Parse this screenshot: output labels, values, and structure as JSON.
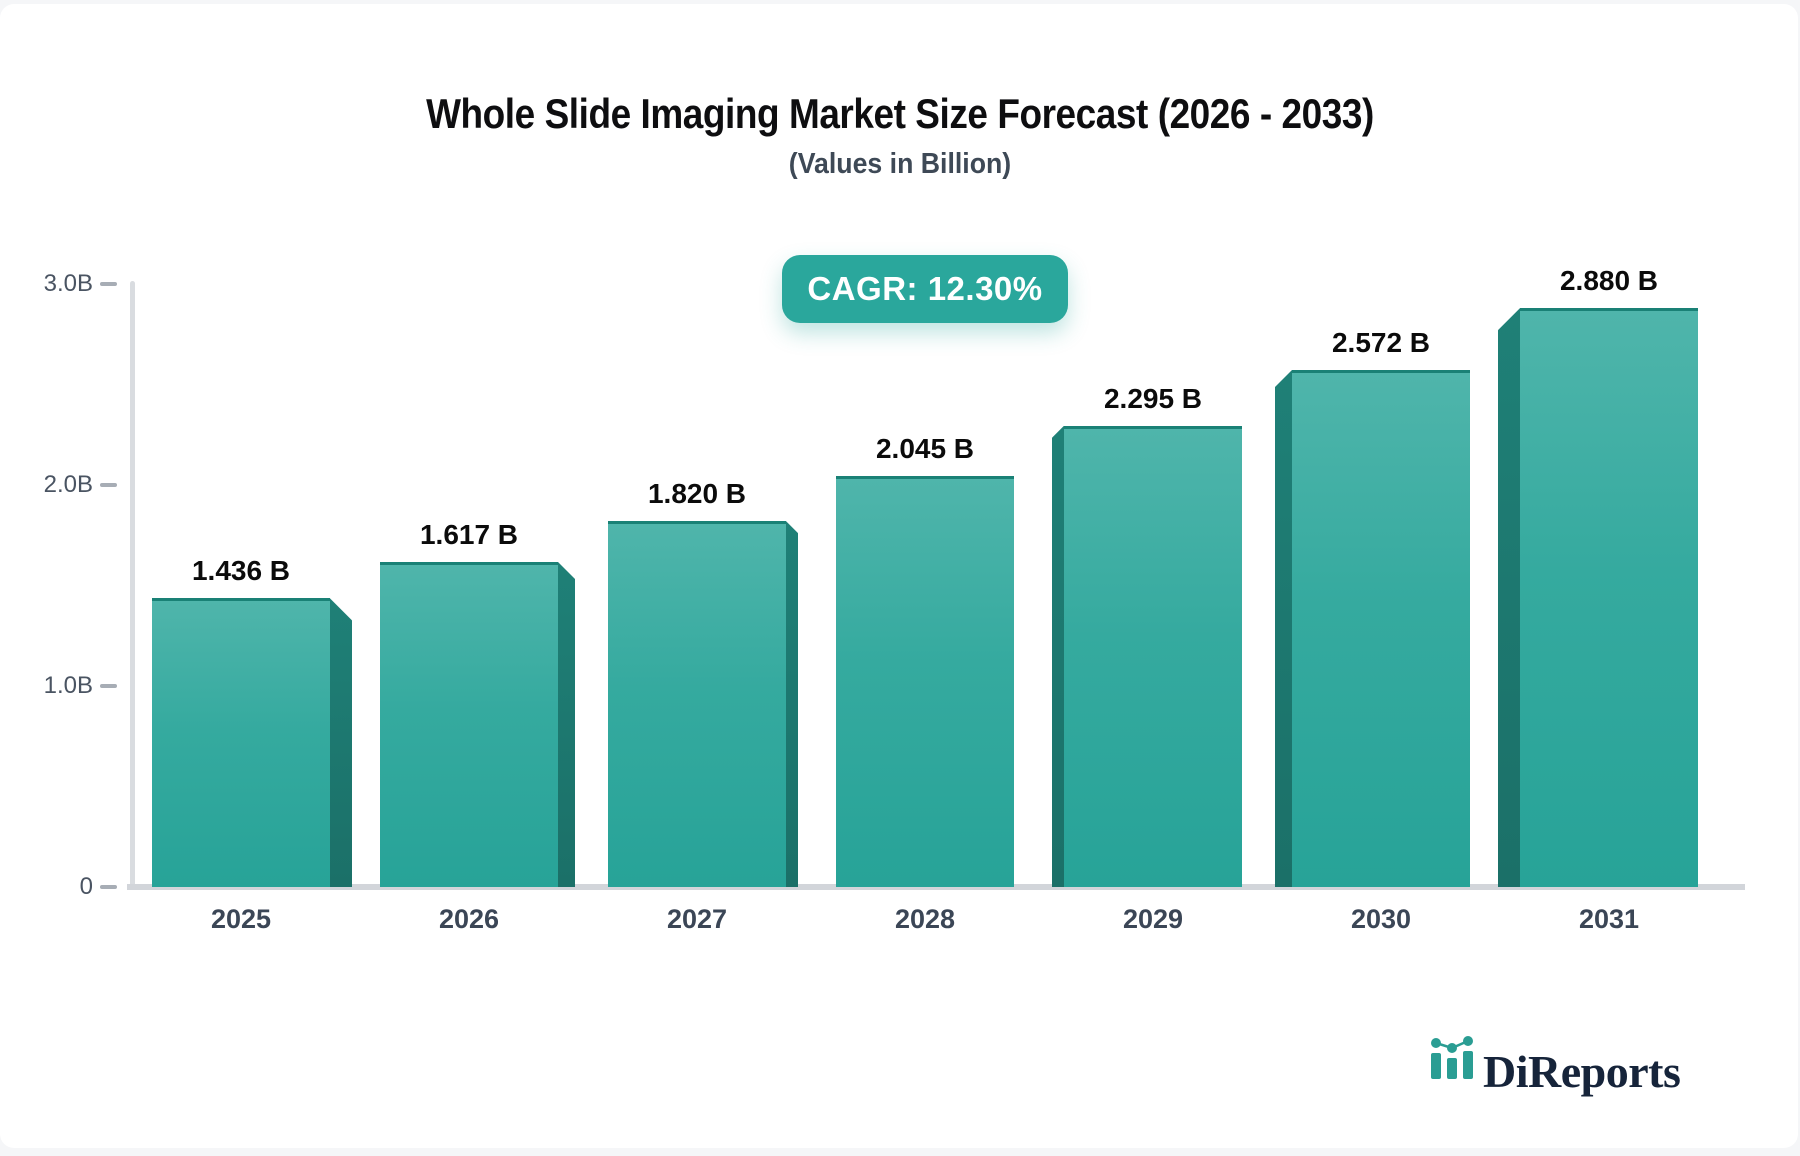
{
  "page": {
    "title": "Whole Slide Imaging Market Size Forecast (2026 - 2033)",
    "subtitle": "(Values in Billion)"
  },
  "badge": {
    "label": "CAGR: 12.30%",
    "bg_color": "#2AA79C",
    "text_color": "#FFFFFF"
  },
  "chart_data": {
    "type": "bar",
    "title": "Whole Slide Imaging Market Size Forecast (2026 - 2033)",
    "subtitle": "(Values in Billion)",
    "unit": "Billion",
    "categories": [
      "2025",
      "2026",
      "2027",
      "2028",
      "2029",
      "2030",
      "2031"
    ],
    "values": [
      1.436,
      1.617,
      1.82,
      2.045,
      2.295,
      2.572,
      2.88
    ],
    "value_labels": [
      "1.436 B",
      "1.617 B",
      "1.820 B",
      "2.045 B",
      "2.295 B",
      "2.572 B",
      "2.880 B"
    ],
    "ylim": [
      0,
      3.0
    ],
    "y_ticks": [
      {
        "value": 3.0,
        "label": "3.0B"
      },
      {
        "value": 2.0,
        "label": "2.0B"
      },
      {
        "value": 1.0,
        "label": "1.0B"
      },
      {
        "value": 0,
        "label": "0"
      }
    ],
    "grid": false,
    "legend": false,
    "annotation": "CAGR: 12.30%",
    "bar_style": {
      "face_top": "#4FB5AB",
      "face_bottom": "#27A398",
      "top_edge": "#1A8176",
      "side_panel": "#1F8077",
      "effect": "3d-perspective-toward-center"
    },
    "axis_colors": {
      "axis_line": "#D9DCE0",
      "baseline": "#D2D5DA",
      "tick_dash": "#A7ADB5",
      "y_label": "#4A5462",
      "x_label": "#3B4656",
      "value_label": "#0B0B0B"
    }
  },
  "logo": {
    "text": "DiReports",
    "icon": "mini-bar-chart-icon",
    "text_color": "#16243A",
    "accent_color": "#2A9D93"
  }
}
